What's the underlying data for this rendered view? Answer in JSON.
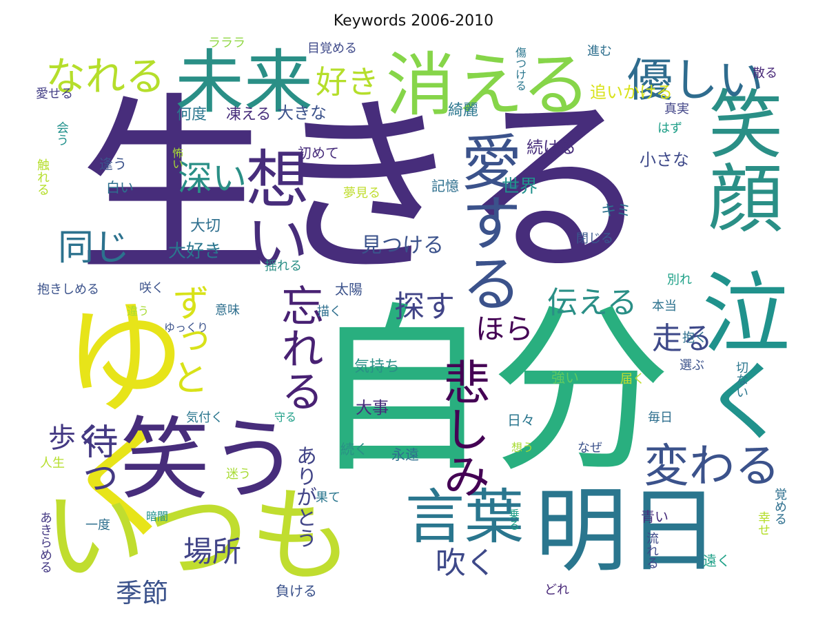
{
  "title": "Keywords 2006-2010",
  "words": [
    {
      "text": "生きる",
      "color": "#472d7b"
    },
    {
      "text": "自分",
      "color": "#29af7f"
    },
    {
      "text": "ゆく",
      "color": "#e7e419"
    },
    {
      "text": "いつも",
      "color": "#c0dd2f"
    },
    {
      "text": "笑う",
      "color": "#472d7b"
    },
    {
      "text": "明日",
      "color": "#2a768e"
    },
    {
      "text": "未来",
      "color": "#2a8f86"
    },
    {
      "text": "消える",
      "color": "#86d549"
    },
    {
      "text": "笑顔",
      "color": "#2a8f86"
    },
    {
      "text": "泣く",
      "color": "#20928c"
    },
    {
      "text": "想い",
      "color": "#472d7b"
    },
    {
      "text": "愛する",
      "color": "#3b528b"
    },
    {
      "text": "言葉",
      "color": "#2a768e"
    },
    {
      "text": "悲しみ",
      "color": "#440154"
    },
    {
      "text": "忘れる",
      "color": "#482173"
    },
    {
      "text": "優しい",
      "color": "#2f6c8e"
    },
    {
      "text": "変わる",
      "color": "#3b528b"
    },
    {
      "text": "なれる",
      "color": "#b5de2b"
    },
    {
      "text": "好き",
      "color": "#b5de2b"
    },
    {
      "text": "ずっと",
      "color": "#d8e219"
    },
    {
      "text": "深い",
      "color": "#2a8f86"
    },
    {
      "text": "同じ",
      "color": "#2c728e"
    },
    {
      "text": "待つ",
      "color": "#443983"
    },
    {
      "text": "歩く",
      "color": "#443983"
    },
    {
      "text": "探す",
      "color": "#414487"
    },
    {
      "text": "伝える",
      "color": "#2a8f86"
    },
    {
      "text": "走る",
      "color": "#3e4989"
    },
    {
      "text": "ほら",
      "color": "#440154"
    },
    {
      "text": "吹く",
      "color": "#3e4989"
    },
    {
      "text": "場所",
      "color": "#414487"
    },
    {
      "text": "季節",
      "color": "#3b528b"
    },
    {
      "text": "ありがとう",
      "color": "#414487"
    },
    {
      "text": "見つける",
      "color": "#3b528b"
    },
    {
      "text": "大好き",
      "color": "#2a768e"
    },
    {
      "text": "大切",
      "color": "#2e6f8e"
    },
    {
      "text": "追いかける",
      "color": "#d8e219"
    },
    {
      "text": "何度",
      "color": "#2a768e"
    },
    {
      "text": "凍える",
      "color": "#472d7b"
    },
    {
      "text": "大きな",
      "color": "#3b528b"
    },
    {
      "text": "綺麗",
      "color": "#2a768e"
    },
    {
      "text": "続ける",
      "color": "#472d7b"
    },
    {
      "text": "小さな",
      "color": "#3e4989"
    },
    {
      "text": "世界",
      "color": "#21918c"
    },
    {
      "text": "キミ",
      "color": "#2c728e"
    },
    {
      "text": "真実",
      "color": "#414487"
    },
    {
      "text": "はず",
      "color": "#1f9f88"
    },
    {
      "text": "閉じる",
      "color": "#38588c"
    },
    {
      "text": "記憶",
      "color": "#2e6f8e"
    },
    {
      "text": "夢見る",
      "color": "#c0dd2f"
    },
    {
      "text": "初めて",
      "color": "#472d7b"
    },
    {
      "text": "怖い",
      "color": "#a8db34"
    },
    {
      "text": "逢う",
      "color": "#3b528b"
    },
    {
      "text": "白い",
      "color": "#2e6f8e"
    },
    {
      "text": "触れる",
      "color": "#b5de2b"
    },
    {
      "text": "会う",
      "color": "#21918c"
    },
    {
      "text": "愛せる",
      "color": "#433e85"
    },
    {
      "text": "ラララ",
      "color": "#90d743"
    },
    {
      "text": "目覚める",
      "color": "#3e4989"
    },
    {
      "text": "進む",
      "color": "#2e6f8e"
    },
    {
      "text": "散る",
      "color": "#482878"
    },
    {
      "text": "傷つける",
      "color": "#2a768e"
    },
    {
      "text": "揺れる",
      "color": "#2a8f86"
    },
    {
      "text": "別れ",
      "color": "#1fa188"
    },
    {
      "text": "抱きしめる",
      "color": "#3b528b"
    },
    {
      "text": "咲く",
      "color": "#3b528b"
    },
    {
      "text": "太陽",
      "color": "#3b528b"
    },
    {
      "text": "本当",
      "color": "#2c728e"
    },
    {
      "text": "意味",
      "color": "#2e6f8e"
    },
    {
      "text": "違う",
      "color": "#a8db34"
    },
    {
      "text": "描く",
      "color": "#2e6f8e"
    },
    {
      "text": "ゆっくり",
      "color": "#3b528b"
    },
    {
      "text": "抱く",
      "color": "#2e6f8e"
    },
    {
      "text": "気持ち",
      "color": "#2a8f86"
    },
    {
      "text": "大事",
      "color": "#472d7b"
    },
    {
      "text": "強い",
      "color": "#5ec962"
    },
    {
      "text": "届く",
      "color": "#c0dd2f"
    },
    {
      "text": "選ぶ",
      "color": "#3b528b"
    },
    {
      "text": "切ない",
      "color": "#2a768e"
    },
    {
      "text": "気付く",
      "color": "#2a768e"
    },
    {
      "text": "日々",
      "color": "#2a768e"
    },
    {
      "text": "毎日",
      "color": "#2e6f8e"
    },
    {
      "text": "守る",
      "color": "#1f9f88"
    },
    {
      "text": "人生",
      "color": "#b5de2b"
    },
    {
      "text": "続く",
      "color": "#2a8f86"
    },
    {
      "text": "永遠",
      "color": "#2e6f8e"
    },
    {
      "text": "なぜ",
      "color": "#3b528b"
    },
    {
      "text": "想う",
      "color": "#a8db34"
    },
    {
      "text": "迷う",
      "color": "#a8db34"
    },
    {
      "text": "果て",
      "color": "#2a768e"
    },
    {
      "text": "乗る",
      "color": "#1f9f88"
    },
    {
      "text": "覚める",
      "color": "#2e6f8e"
    },
    {
      "text": "一度",
      "color": "#2e6f8e"
    },
    {
      "text": "暗闇",
      "color": "#21918c"
    },
    {
      "text": "青い",
      "color": "#472d7b"
    },
    {
      "text": "あきらめる",
      "color": "#443983"
    },
    {
      "text": "流れる",
      "color": "#3e4989"
    },
    {
      "text": "幸せ",
      "color": "#b5de2b"
    },
    {
      "text": "遠く",
      "color": "#1fa188"
    },
    {
      "text": "負ける",
      "color": "#3b528b"
    },
    {
      "text": "どれ",
      "color": "#482878"
    }
  ]
}
